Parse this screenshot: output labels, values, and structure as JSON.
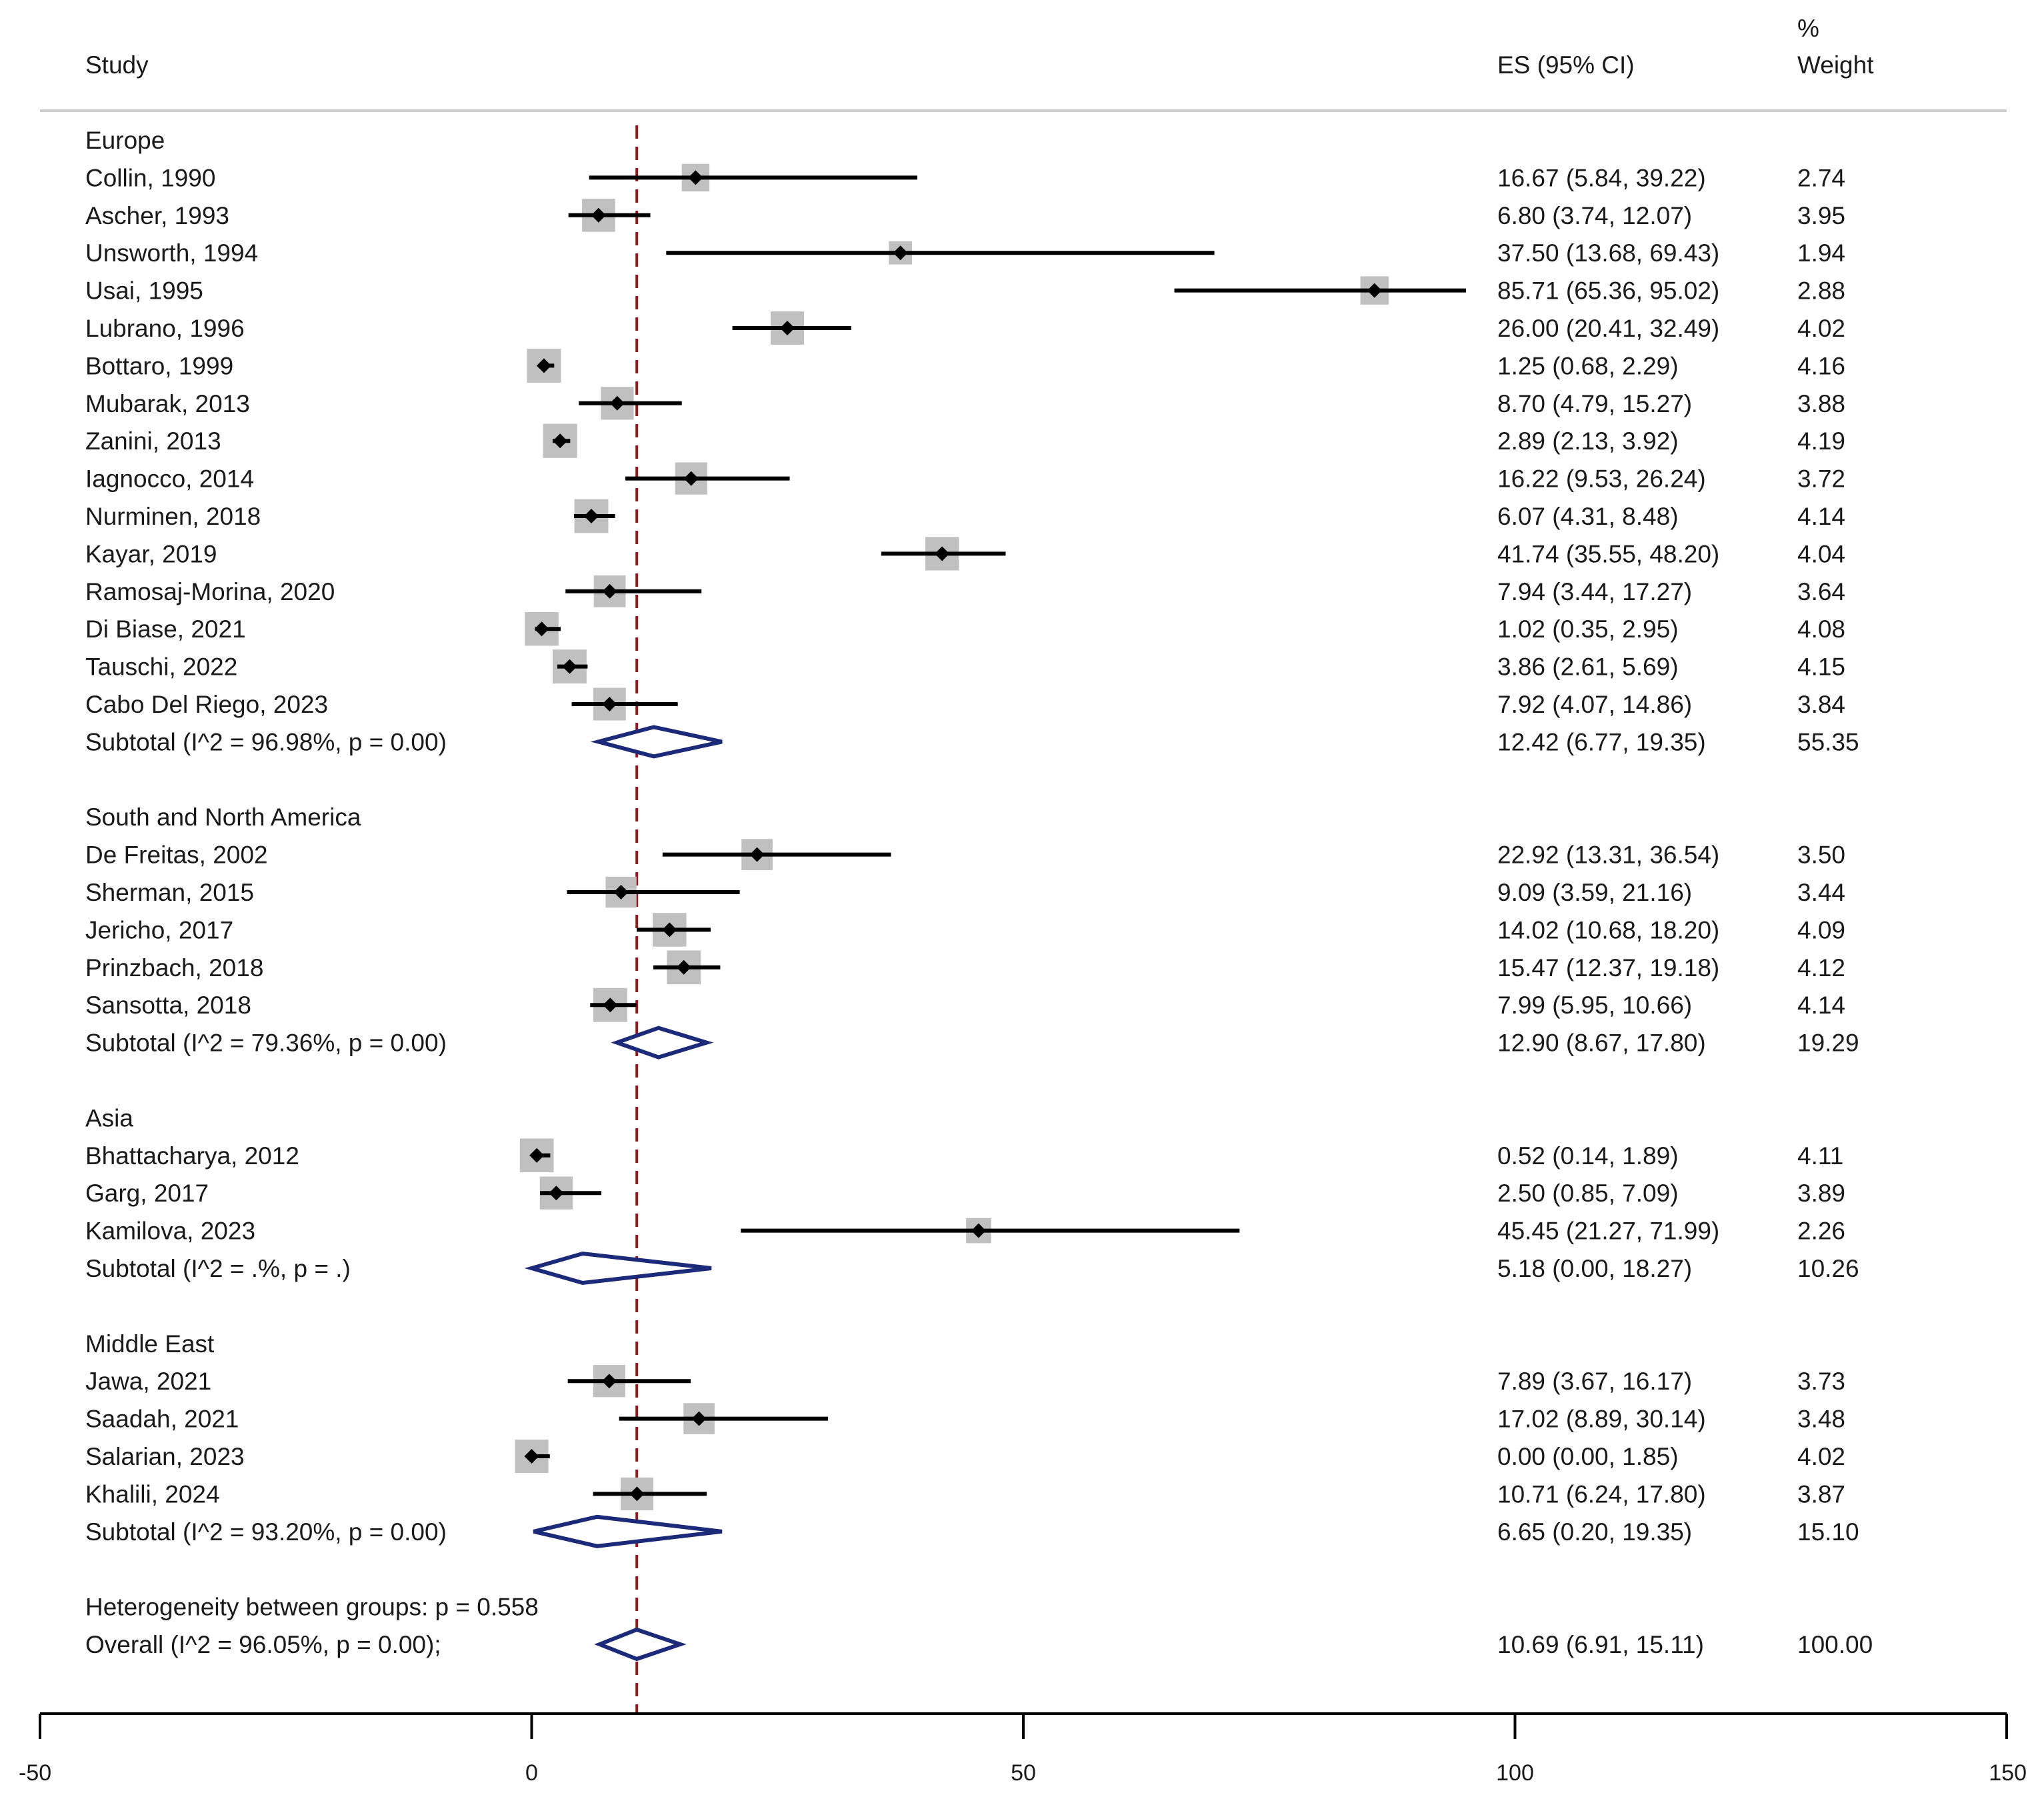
{
  "chart_data": {
    "type": "forest",
    "headers": {
      "study": "Study",
      "es": "ES (95% CI)",
      "weight_top": "%",
      "weight_bottom": "Weight"
    },
    "reference_line": 10.69,
    "xlim": [
      -50,
      150
    ],
    "xticks": [
      -50,
      0,
      50,
      100,
      150
    ],
    "groups": [
      {
        "name": "Europe",
        "studies": [
          {
            "label": "Collin, 1990",
            "es": 16.67,
            "lo": 5.84,
            "hi": 39.22,
            "es_text": "16.67 (5.84, 39.22)",
            "weight": 2.74,
            "weight_text": "2.74"
          },
          {
            "label": "Ascher, 1993",
            "es": 6.8,
            "lo": 3.74,
            "hi": 12.07,
            "es_text": "6.80 (3.74, 12.07)",
            "weight": 3.95,
            "weight_text": "3.95"
          },
          {
            "label": "Unsworth, 1994",
            "es": 37.5,
            "lo": 13.68,
            "hi": 69.43,
            "es_text": "37.50 (13.68, 69.43)",
            "weight": 1.94,
            "weight_text": "1.94"
          },
          {
            "label": "Usai, 1995",
            "es": 85.71,
            "lo": 65.36,
            "hi": 95.02,
            "es_text": "85.71 (65.36, 95.02)",
            "weight": 2.88,
            "weight_text": "2.88"
          },
          {
            "label": "Lubrano, 1996",
            "es": 26.0,
            "lo": 20.41,
            "hi": 32.49,
            "es_text": "26.00 (20.41, 32.49)",
            "weight": 4.02,
            "weight_text": "4.02"
          },
          {
            "label": "Bottaro, 1999",
            "es": 1.25,
            "lo": 0.68,
            "hi": 2.29,
            "es_text": "1.25 (0.68, 2.29)",
            "weight": 4.16,
            "weight_text": "4.16"
          },
          {
            "label": "Mubarak, 2013",
            "es": 8.7,
            "lo": 4.79,
            "hi": 15.27,
            "es_text": "8.70 (4.79, 15.27)",
            "weight": 3.88,
            "weight_text": "3.88"
          },
          {
            "label": "Zanini, 2013",
            "es": 2.89,
            "lo": 2.13,
            "hi": 3.92,
            "es_text": "2.89 (2.13, 3.92)",
            "weight": 4.19,
            "weight_text": "4.19"
          },
          {
            "label": "Iagnocco, 2014",
            "es": 16.22,
            "lo": 9.53,
            "hi": 26.24,
            "es_text": "16.22 (9.53, 26.24)",
            "weight": 3.72,
            "weight_text": "3.72"
          },
          {
            "label": "Nurminen, 2018",
            "es": 6.07,
            "lo": 4.31,
            "hi": 8.48,
            "es_text": "6.07 (4.31, 8.48)",
            "weight": 4.14,
            "weight_text": "4.14"
          },
          {
            "label": "Kayar, 2019",
            "es": 41.74,
            "lo": 35.55,
            "hi": 48.2,
            "es_text": "41.74 (35.55, 48.20)",
            "weight": 4.04,
            "weight_text": "4.04"
          },
          {
            "label": "Ramosaj-Morina, 2020",
            "es": 7.94,
            "lo": 3.44,
            "hi": 17.27,
            "es_text": "7.94 (3.44, 17.27)",
            "weight": 3.64,
            "weight_text": "3.64"
          },
          {
            "label": "Di Biase, 2021",
            "es": 1.02,
            "lo": 0.35,
            "hi": 2.95,
            "es_text": "1.02 (0.35, 2.95)",
            "weight": 4.08,
            "weight_text": "4.08"
          },
          {
            "label": "Tauschi, 2022",
            "es": 3.86,
            "lo": 2.61,
            "hi": 5.69,
            "es_text": "3.86 (2.61, 5.69)",
            "weight": 4.15,
            "weight_text": "4.15"
          },
          {
            "label": "Cabo Del Riego, 2023",
            "es": 7.92,
            "lo": 4.07,
            "hi": 14.86,
            "es_text": "7.92 (4.07, 14.86)",
            "weight": 3.84,
            "weight_text": "3.84"
          }
        ],
        "subtotal": {
          "label": "Subtotal  (I^2 = 96.98%, p = 0.00)",
          "es": 12.42,
          "lo": 6.77,
          "hi": 19.35,
          "es_text": "12.42 (6.77, 19.35)",
          "weight_text": "55.35"
        }
      },
      {
        "name": "South and North America",
        "studies": [
          {
            "label": "De Freitas, 2002",
            "es": 22.92,
            "lo": 13.31,
            "hi": 36.54,
            "es_text": "22.92 (13.31, 36.54)",
            "weight": 3.5,
            "weight_text": "3.50"
          },
          {
            "label": "Sherman, 2015",
            "es": 9.09,
            "lo": 3.59,
            "hi": 21.16,
            "es_text": "9.09 (3.59, 21.16)",
            "weight": 3.44,
            "weight_text": "3.44"
          },
          {
            "label": "Jericho, 2017",
            "es": 14.02,
            "lo": 10.68,
            "hi": 18.2,
            "es_text": "14.02 (10.68, 18.20)",
            "weight": 4.09,
            "weight_text": "4.09"
          },
          {
            "label": "Prinzbach, 2018",
            "es": 15.47,
            "lo": 12.37,
            "hi": 19.18,
            "es_text": "15.47 (12.37, 19.18)",
            "weight": 4.12,
            "weight_text": "4.12"
          },
          {
            "label": "Sansotta, 2018",
            "es": 7.99,
            "lo": 5.95,
            "hi": 10.66,
            "es_text": "7.99 (5.95, 10.66)",
            "weight": 4.14,
            "weight_text": "4.14"
          }
        ],
        "subtotal": {
          "label": "Subtotal  (I^2 = 79.36%, p = 0.00)",
          "es": 12.9,
          "lo": 8.67,
          "hi": 17.8,
          "es_text": "12.90 (8.67, 17.80)",
          "weight_text": "19.29"
        }
      },
      {
        "name": "Asia",
        "studies": [
          {
            "label": "Bhattacharya, 2012",
            "es": 0.52,
            "lo": 0.14,
            "hi": 1.89,
            "es_text": "0.52 (0.14, 1.89)",
            "weight": 4.11,
            "weight_text": "4.11"
          },
          {
            "label": "Garg, 2017",
            "es": 2.5,
            "lo": 0.85,
            "hi": 7.09,
            "es_text": "2.50 (0.85, 7.09)",
            "weight": 3.89,
            "weight_text": "3.89"
          },
          {
            "label": "Kamilova, 2023",
            "es": 45.45,
            "lo": 21.27,
            "hi": 71.99,
            "es_text": "45.45 (21.27, 71.99)",
            "weight": 2.26,
            "weight_text": "2.26"
          }
        ],
        "subtotal": {
          "label": "Subtotal  (I^2 = .%, p = .)",
          "es": 5.18,
          "lo": 0.0,
          "hi": 18.27,
          "es_text": "5.18 (0.00, 18.27)",
          "weight_text": "10.26"
        }
      },
      {
        "name": "Middle East",
        "studies": [
          {
            "label": "Jawa, 2021",
            "es": 7.89,
            "lo": 3.67,
            "hi": 16.17,
            "es_text": "7.89 (3.67, 16.17)",
            "weight": 3.73,
            "weight_text": "3.73"
          },
          {
            "label": "Saadah, 2021",
            "es": 17.02,
            "lo": 8.89,
            "hi": 30.14,
            "es_text": "17.02 (8.89, 30.14)",
            "weight": 3.48,
            "weight_text": "3.48"
          },
          {
            "label": "Salarian, 2023",
            "es": 0.0,
            "lo": 0.0,
            "hi": 1.85,
            "es_text": "0.00 (0.00, 1.85)",
            "weight": 4.02,
            "weight_text": "4.02"
          },
          {
            "label": "Khalili, 2024",
            "es": 10.71,
            "lo": 6.24,
            "hi": 17.8,
            "es_text": "10.71 (6.24, 17.80)",
            "weight": 3.87,
            "weight_text": "3.87"
          }
        ],
        "subtotal": {
          "label": "Subtotal  (I^2 = 93.20%, p = 0.00)",
          "es": 6.65,
          "lo": 0.2,
          "hi": 19.35,
          "es_text": "6.65 (0.20, 19.35)",
          "weight_text": "15.10"
        }
      }
    ],
    "heterogeneity_text": "Heterogeneity between groups: p = 0.558",
    "overall": {
      "label": "Overall  (I^2 = 96.05%, p = 0.00);",
      "es": 10.69,
      "lo": 6.91,
      "hi": 15.11,
      "es_text": "10.69 (6.91, 15.11)",
      "weight_text": "100.00"
    },
    "colors": {
      "text": "#1a1a1a",
      "ci_line": "#000000",
      "weight_box": "#c0c0c0",
      "point": "#000000",
      "diamond": "#1c2a7a",
      "reference_line": "#a01818",
      "rule": "#cccccc"
    }
  }
}
